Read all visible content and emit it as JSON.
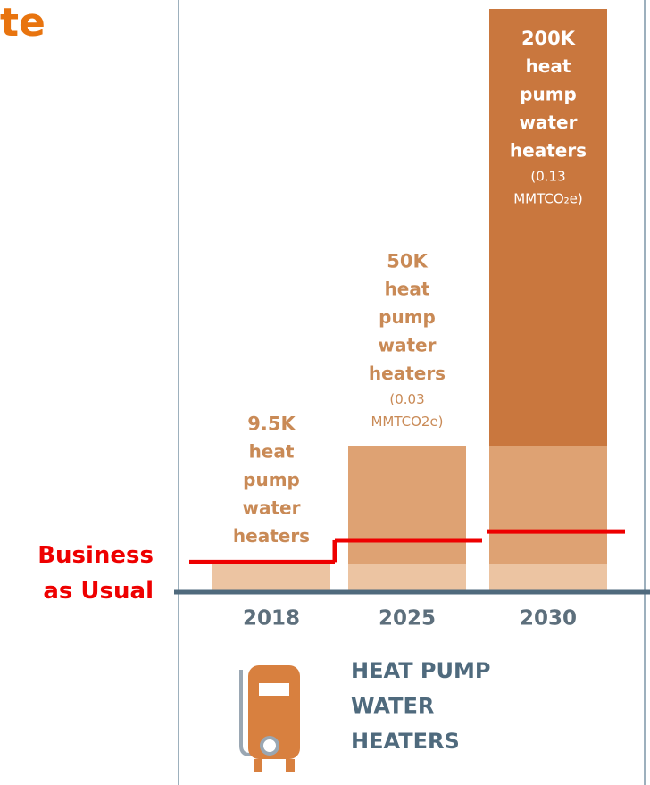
{
  "chart_data": {
    "type": "bar",
    "title": "te",
    "categories": [
      "2018",
      "2025",
      "2030"
    ],
    "values": [
      9.5,
      50,
      200
    ],
    "value_labels": [
      "9.5K",
      "50K",
      "200K"
    ],
    "colors": [
      "#ecc4a2",
      "#dea273",
      "#c9773e"
    ],
    "bar_descriptions": [
      [
        "heat",
        "pump",
        "water",
        "heaters"
      ],
      [
        "heat",
        "pump",
        "water",
        "heaters"
      ],
      [
        "heat",
        "pump",
        "water",
        "heaters"
      ]
    ],
    "emissions": [
      null,
      [
        "(0.03",
        "MMTCO2e)"
      ],
      [
        "(0.13",
        "MMTCO₂e)"
      ]
    ],
    "ylim": [
      0,
      200
    ],
    "series": [
      {
        "name": "Business as Usual",
        "color": "#ee0000",
        "values": [
          10,
          17.5,
          20.5
        ]
      }
    ],
    "category_title": [
      "HEAT PUMP",
      "WATER",
      "HEATERS"
    ]
  }
}
